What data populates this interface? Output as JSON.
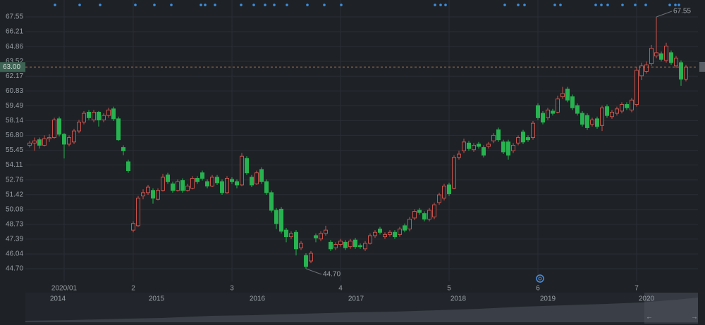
{
  "chart_data": {
    "type": "candlestick",
    "categories": [
      null,
      null,
      null,
      null,
      null,
      null,
      null,
      "2020/01",
      null,
      null,
      null,
      null,
      null,
      null,
      null,
      null,
      null,
      null,
      null,
      null,
      null,
      "2",
      null,
      null,
      null,
      null,
      null,
      null,
      null,
      null,
      null,
      null,
      null,
      null,
      null,
      null,
      null,
      null,
      null,
      null,
      null,
      "3",
      null,
      null,
      null,
      null,
      null,
      null,
      null,
      null,
      null,
      null,
      null,
      null,
      null,
      null,
      null,
      null,
      null,
      null,
      null,
      null,
      null,
      "4",
      null,
      null,
      null,
      null,
      null,
      null,
      null,
      null,
      null,
      null,
      null,
      null,
      null,
      null,
      null,
      null,
      null,
      null,
      null,
      null,
      null,
      "5",
      null,
      null,
      null,
      null,
      null,
      null,
      null,
      null,
      null,
      null,
      null,
      null,
      null,
      null,
      null,
      null,
      null,
      "6",
      null,
      null,
      null,
      null,
      null,
      null,
      null,
      null,
      null,
      null,
      null,
      null,
      null,
      null,
      null,
      null,
      null,
      null,
      null,
      "7",
      null,
      null,
      null,
      null,
      null,
      null,
      null,
      null,
      null,
      null
    ],
    "open": [
      55.9,
      56.1,
      56.4,
      55.9,
      56.5,
      56.6,
      58.3,
      56.9,
      56.0,
      56.2,
      57.2,
      58.0,
      58.9,
      58.2,
      58.9,
      58.2,
      58.6,
      59.2,
      58.3,
      55.7,
      54.4,
      48.2,
      48.6,
      51.3,
      51.6,
      51.8,
      51.0,
      51.8,
      53.2,
      52.4,
      51.8,
      52.7,
      51.8,
      52.0,
      52.9,
      53.4,
      52.6,
      52.2,
      53.0,
      52.6,
      51.6,
      52.8,
      52.6,
      52.3,
      54.7,
      53.0,
      52.4,
      53.7,
      52.6,
      51.6,
      50.0,
      50.1,
      48.2,
      47.6,
      48.0,
      46.6,
      45.9,
      45.4,
      47.7,
      47.4,
      47.9,
      47.1,
      46.6,
      46.9,
      47.1,
      46.7,
      47.3,
      46.8,
      46.5,
      47.0,
      47.7,
      48.3,
      47.6,
      47.8,
      48.0,
      47.8,
      48.6,
      48.3,
      49.3,
      50.0,
      49.7,
      49.2,
      49.4,
      50.7,
      51.1,
      52.3,
      52.0,
      54.8,
      55.4,
      56.1,
      55.5,
      56.0,
      55.7,
      55.8,
      56.3,
      57.3,
      56.2,
      56.2,
      55.4,
      56.1,
      57.1,
      56.6,
      56.6,
      59.5,
      58.8,
      58.4,
      59.0,
      58.9,
      60.3,
      61.0,
      60.3,
      59.5,
      58.8,
      58.6,
      57.8,
      58.3,
      57.7,
      59.4,
      58.5,
      58.8,
      59.0,
      59.6,
      59.1,
      59.6,
      62.2,
      62.6,
      63.3,
      64.0,
      64.2,
      63.6,
      64.3,
      63.1,
      63.4,
      61.9
    ],
    "high": [
      56.3,
      56.6,
      56.6,
      56.8,
      56.9,
      58.4,
      58.5,
      57.0,
      56.8,
      57.4,
      58.2,
      59.0,
      59.1,
      59.1,
      59.0,
      58.8,
      59.3,
      59.4,
      58.5,
      55.9,
      54.6,
      49.0,
      51.3,
      51.9,
      52.3,
      52.0,
      52.0,
      53.3,
      53.4,
      52.6,
      52.8,
      52.9,
      52.4,
      53.1,
      53.1,
      53.6,
      52.8,
      53.2,
      53.2,
      52.8,
      53.1,
      53.0,
      52.8,
      55.2,
      54.9,
      53.2,
      53.6,
      53.9,
      52.8,
      51.8,
      50.2,
      50.3,
      48.4,
      48.1,
      48.2,
      47.2,
      46.1,
      46.3,
      47.9,
      48.1,
      48.6,
      47.3,
      47.1,
      47.4,
      47.3,
      47.4,
      47.5,
      47.0,
      47.2,
      47.9,
      48.2,
      48.5,
      48.0,
      48.2,
      48.2,
      48.5,
      48.8,
      49.4,
      50.1,
      50.2,
      49.9,
      50.2,
      50.7,
      51.6,
      52.4,
      52.5,
      55.0,
      55.4,
      56.5,
      56.3,
      56.1,
      56.2,
      55.9,
      56.2,
      57.0,
      57.5,
      56.4,
      56.4,
      56.1,
      56.8,
      57.3,
      56.8,
      58.1,
      59.7,
      59.0,
      59.3,
      59.2,
      60.4,
      61.2,
      61.2,
      60.5,
      59.7,
      59.0,
      58.8,
      58.4,
      58.5,
      59.5,
      59.6,
      59.1,
      59.4,
      59.8,
      59.8,
      60.2,
      63.0,
      63.4,
      63.5,
      65.0,
      67.55,
      64.4,
      65.2,
      64.5,
      64.0,
      63.6,
      63.2
    ],
    "low": [
      55.7,
      55.4,
      55.6,
      55.8,
      56.2,
      56.5,
      56.7,
      54.7,
      55.8,
      56.0,
      57.0,
      57.8,
      58.2,
      58.0,
      57.6,
      58.0,
      58.4,
      58.1,
      56.3,
      55.0,
      53.4,
      48.0,
      48.5,
      51.0,
      51.4,
      50.6,
      50.9,
      51.7,
      52.4,
      51.6,
      51.7,
      51.6,
      51.7,
      51.9,
      52.4,
      52.7,
      52.0,
      52.1,
      52.3,
      51.4,
      51.5,
      52.4,
      52.0,
      52.2,
      53.2,
      52.1,
      52.3,
      52.4,
      51.4,
      49.8,
      48.3,
      47.9,
      47.1,
      47.4,
      45.9,
      46.4,
      44.7,
      45.2,
      47.1,
      47.2,
      47.7,
      46.3,
      46.4,
      46.7,
      46.4,
      46.5,
      46.5,
      46.5,
      46.3,
      46.9,
      47.5,
      47.8,
      47.4,
      47.6,
      47.4,
      47.6,
      48.0,
      48.1,
      49.1,
      49.6,
      49.0,
      49.0,
      49.2,
      50.5,
      50.9,
      51.3,
      51.9,
      54.6,
      55.2,
      55.4,
      55.3,
      55.6,
      54.8,
      55.6,
      56.1,
      56.2,
      55.1,
      54.6,
      55.2,
      55.9,
      56.0,
      56.2,
      56.4,
      58.2,
      57.8,
      58.2,
      58.6,
      58.8,
      60.1,
      59.8,
      59.1,
      58.6,
      57.6,
      57.3,
      57.6,
      57.4,
      57.2,
      58.4,
      58.3,
      58.6,
      58.8,
      59.1,
      58.9,
      59.4,
      61.8,
      62.4,
      63.1,
      63.8,
      63.5,
      63.4,
      63.2,
      62.9,
      61.3,
      61.7
    ],
    "close": [
      56.1,
      56.3,
      55.9,
      56.5,
      56.6,
      58.2,
      56.9,
      56.0,
      56.6,
      57.2,
      58.0,
      58.8,
      58.4,
      58.9,
      58.2,
      58.6,
      59.1,
      58.3,
      56.4,
      55.4,
      53.6,
      48.8,
      51.1,
      51.6,
      52.1,
      51.1,
      51.8,
      53.0,
      52.6,
      51.8,
      52.6,
      51.8,
      52.2,
      52.9,
      52.6,
      52.9,
      52.2,
      53.0,
      52.5,
      51.6,
      52.9,
      52.6,
      52.3,
      54.9,
      53.4,
      52.3,
      53.4,
      52.6,
      51.6,
      50.0,
      48.8,
      48.1,
      47.6,
      47.9,
      46.5,
      47.0,
      44.9,
      46.1,
      47.5,
      47.9,
      48.2,
      46.5,
      46.9,
      47.2,
      46.6,
      47.2,
      46.7,
      46.7,
      47.0,
      47.7,
      48.0,
      48.0,
      47.8,
      48.0,
      47.6,
      48.3,
      48.2,
      49.2,
      49.9,
      49.8,
      49.2,
      50.0,
      50.5,
      51.4,
      52.2,
      51.5,
      54.8,
      55.1,
      56.2,
      55.6,
      55.9,
      55.8,
      55.0,
      56.0,
      56.8,
      56.4,
      55.3,
      55.0,
      55.9,
      56.6,
      56.2,
      56.4,
      57.9,
      58.4,
      58.0,
      59.1,
      58.8,
      60.1,
      60.6,
      60.0,
      59.3,
      58.8,
      57.8,
      57.5,
      58.2,
      57.6,
      59.3,
      58.6,
      58.9,
      59.2,
      59.6,
      59.3,
      60.0,
      62.7,
      63.1,
      63.2,
      64.7,
      64.3,
      63.7,
      64.9,
      63.4,
      63.8,
      61.9,
      63.0
    ],
    "up_color": "#c8524c",
    "down_color": "#27b34f",
    "ylim": [
      43.55,
      69.08
    ],
    "yticks": [
      67.55,
      66.21,
      64.86,
      63.52,
      62.17,
      60.83,
      59.49,
      58.14,
      {
        "value": 56.8,
        "label": "56.80"
      },
      55.45,
      54.11,
      52.76,
      51.42,
      50.08,
      48.73,
      47.39,
      46.04,
      {
        "value": 44.7,
        "label": "44.70"
      }
    ],
    "grid": true,
    "last_price": {
      "value": 63,
      "label": "63.00"
    },
    "max_label": 67.55,
    "min_label": {
      "value": 44.7,
      "label": "44.70"
    },
    "navigator_labels": [
      "2014",
      "2015",
      "2016",
      "2017",
      "2018",
      "2019",
      "2020"
    ]
  }
}
